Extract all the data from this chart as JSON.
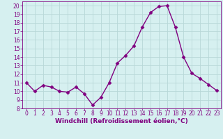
{
  "x": [
    0,
    1,
    2,
    3,
    4,
    5,
    6,
    7,
    8,
    9,
    10,
    11,
    12,
    13,
    14,
    15,
    16,
    17,
    18,
    19,
    20,
    21,
    22,
    23
  ],
  "y": [
    11,
    10,
    10.7,
    10.5,
    10,
    9.9,
    10.5,
    9.7,
    8.4,
    9.3,
    11,
    13.3,
    14.2,
    15.3,
    17.5,
    19.2,
    19.9,
    20.0,
    17.5,
    14.0,
    12.1,
    11.5,
    10.8,
    10.1
  ],
  "line_color": "#800080",
  "marker": "D",
  "marker_size": 2.5,
  "bg_color": "#d6f0f0",
  "grid_color": "#b8d8d8",
  "xlabel": "Windchill (Refroidissement éolien,°C)",
  "xlabel_color": "#800080",
  "tick_color": "#800080",
  "ylim": [
    8,
    20.5
  ],
  "xlim": [
    -0.5,
    23.5
  ],
  "yticks": [
    8,
    9,
    10,
    11,
    12,
    13,
    14,
    15,
    16,
    17,
    18,
    19,
    20
  ],
  "xticks": [
    0,
    1,
    2,
    3,
    4,
    5,
    6,
    7,
    8,
    9,
    10,
    11,
    12,
    13,
    14,
    15,
    16,
    17,
    18,
    19,
    20,
    21,
    22,
    23
  ],
  "xlabel_fontsize": 6.5,
  "tick_fontsize": 5.5,
  "linewidth": 1.0
}
